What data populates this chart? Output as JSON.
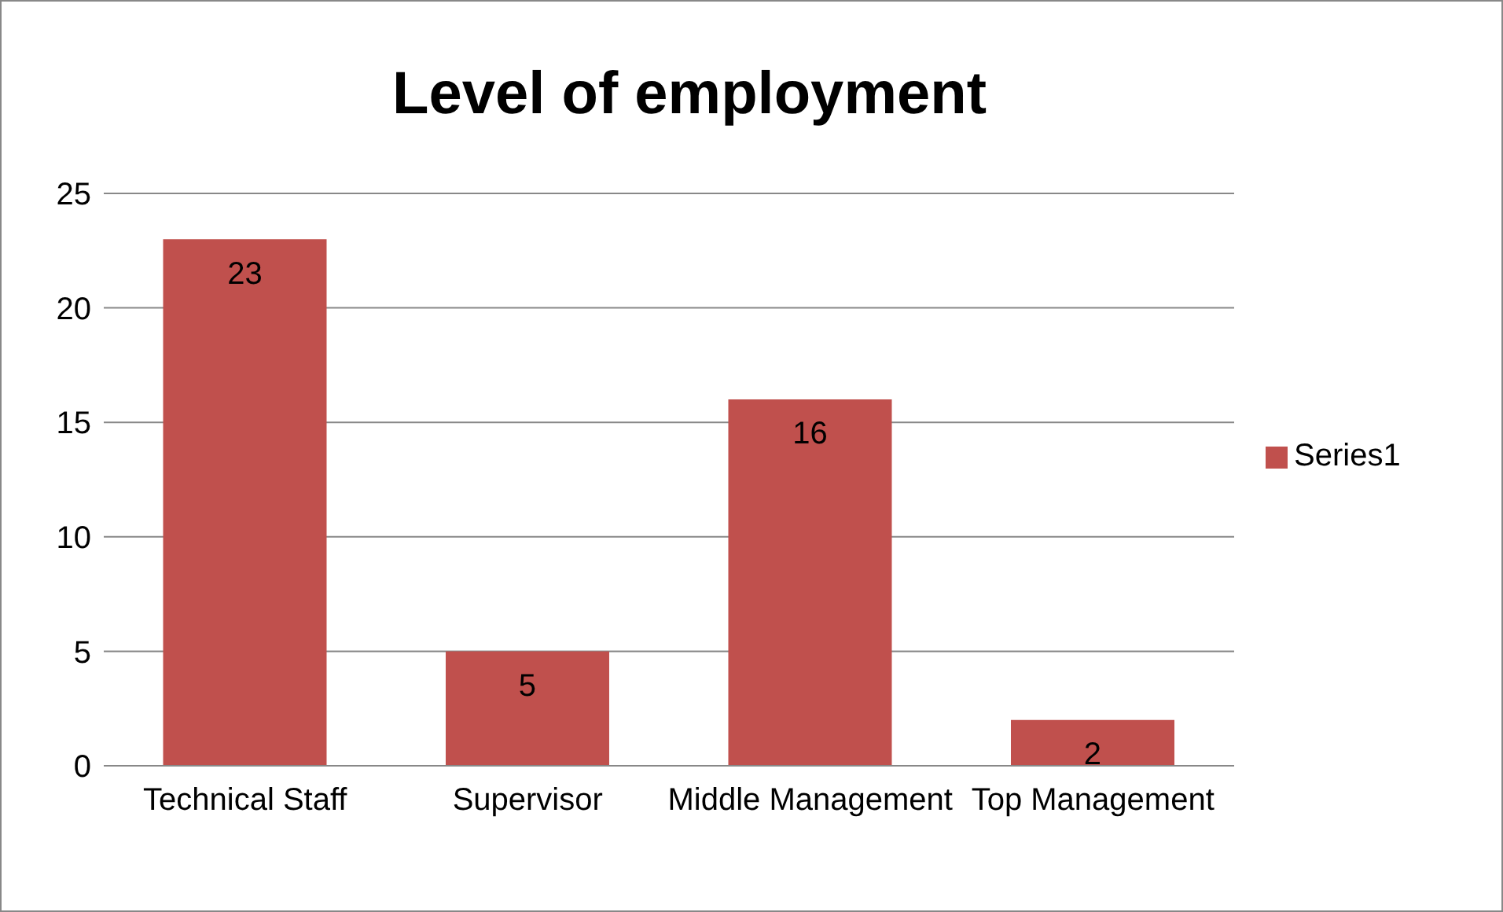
{
  "chart_data": {
    "type": "bar",
    "title": "Level of employment",
    "categories": [
      "Technical Staff",
      "Supervisor",
      "Middle Management",
      "Top Management"
    ],
    "series": [
      {
        "name": "Series1",
        "color": "#c0504d",
        "values": [
          23,
          5,
          16,
          2
        ]
      }
    ],
    "ylim": [
      0,
      25
    ],
    "yticks": [
      0,
      5,
      10,
      15,
      20,
      25
    ],
    "grid": "y",
    "legend": "right",
    "data_labels": true
  }
}
